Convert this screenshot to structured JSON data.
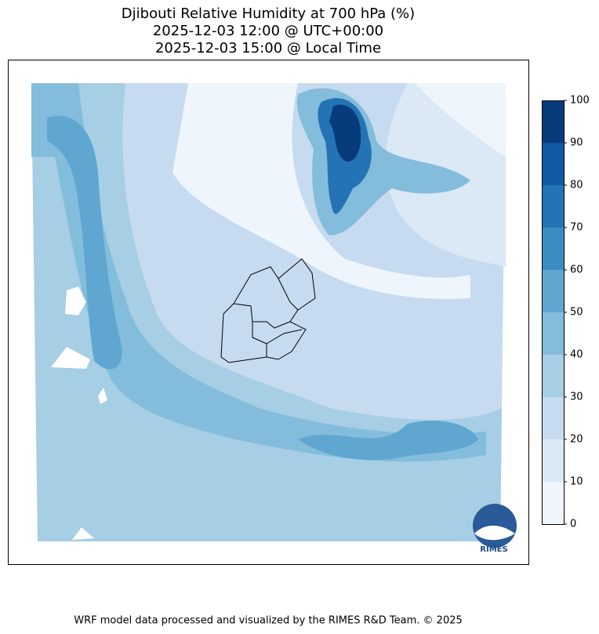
{
  "title": [
    "Djibouti Relative Humidity at 700 hPa (%)",
    "2025-12-03 12:00 @ UTC+00:00",
    "2025-12-03 15:00 @ Local Time"
  ],
  "colorbar": {
    "ticks": [
      0,
      10,
      20,
      30,
      40,
      50,
      60,
      70,
      80,
      90,
      100
    ],
    "colors": [
      "#eef5fc",
      "#dbe9f6",
      "#c6dbef",
      "#a6cee4",
      "#84bcdb",
      "#5fa6d1",
      "#3d8dc4",
      "#2373b5",
      "#0f5aa3",
      "#083b7c"
    ]
  },
  "logo": "RIMES",
  "footer": "WRF model data processed and visualized by the RIMES R&D Team. © 2025"
}
